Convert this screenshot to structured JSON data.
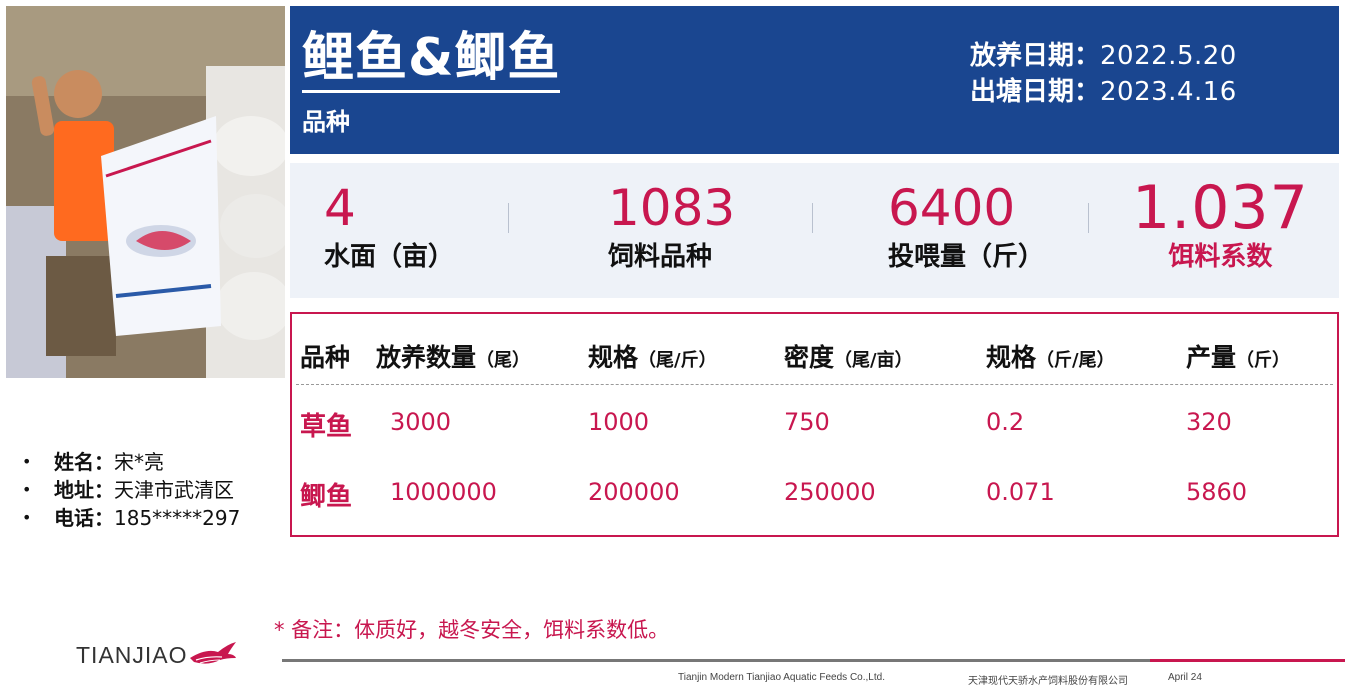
{
  "header": {
    "title": "鲤鱼&鲫鱼",
    "subtitle": "品种",
    "stock_date_label": "放养日期：",
    "stock_date": "2022.5.20",
    "harvest_date_label": "出塘日期：",
    "harvest_date": "2023.4.16"
  },
  "stats": [
    {
      "value": "4",
      "label": "水面（亩）"
    },
    {
      "value": "1083",
      "label": "饲料品种"
    },
    {
      "value": "6400",
      "label": "投喂量（斤）"
    },
    {
      "value": "1.037",
      "label": "饵料系数"
    }
  ],
  "farmer": {
    "name_label": "姓名：",
    "name": "宋*亮",
    "address_label": "地址：",
    "address": "天津市武清区",
    "phone_label": "电话：",
    "phone": "185*****297"
  },
  "table": {
    "headers": [
      {
        "main": "品种",
        "unit": ""
      },
      {
        "main": "放养数量",
        "unit": "（尾）"
      },
      {
        "main": "规格",
        "unit": "（尾/斤）"
      },
      {
        "main": "密度",
        "unit": "（尾/亩）"
      },
      {
        "main": "规格",
        "unit": "（斤/尾）"
      },
      {
        "main": "产量",
        "unit": "（斤）"
      }
    ],
    "rows": [
      [
        "草鱼",
        "3000",
        "1000",
        "750",
        "0.2",
        "320"
      ],
      [
        "鲫鱼",
        "1000000",
        "200000",
        "250000",
        "0.071",
        "5860"
      ]
    ]
  },
  "note": "* 备注：体质好，越冬安全，饵料系数低。",
  "footer": {
    "logo_text": "TIANJIAO",
    "company_en": "Tianjin Modern Tianjiao Aquatic Feeds Co.,Ltd.",
    "company_cn": "天津现代天骄水产饲料股份有限公司",
    "date": "April 24"
  },
  "colors": {
    "header_bg": "#1a4690",
    "accent": "#c8174f",
    "stats_bg": "#eef2f8"
  }
}
